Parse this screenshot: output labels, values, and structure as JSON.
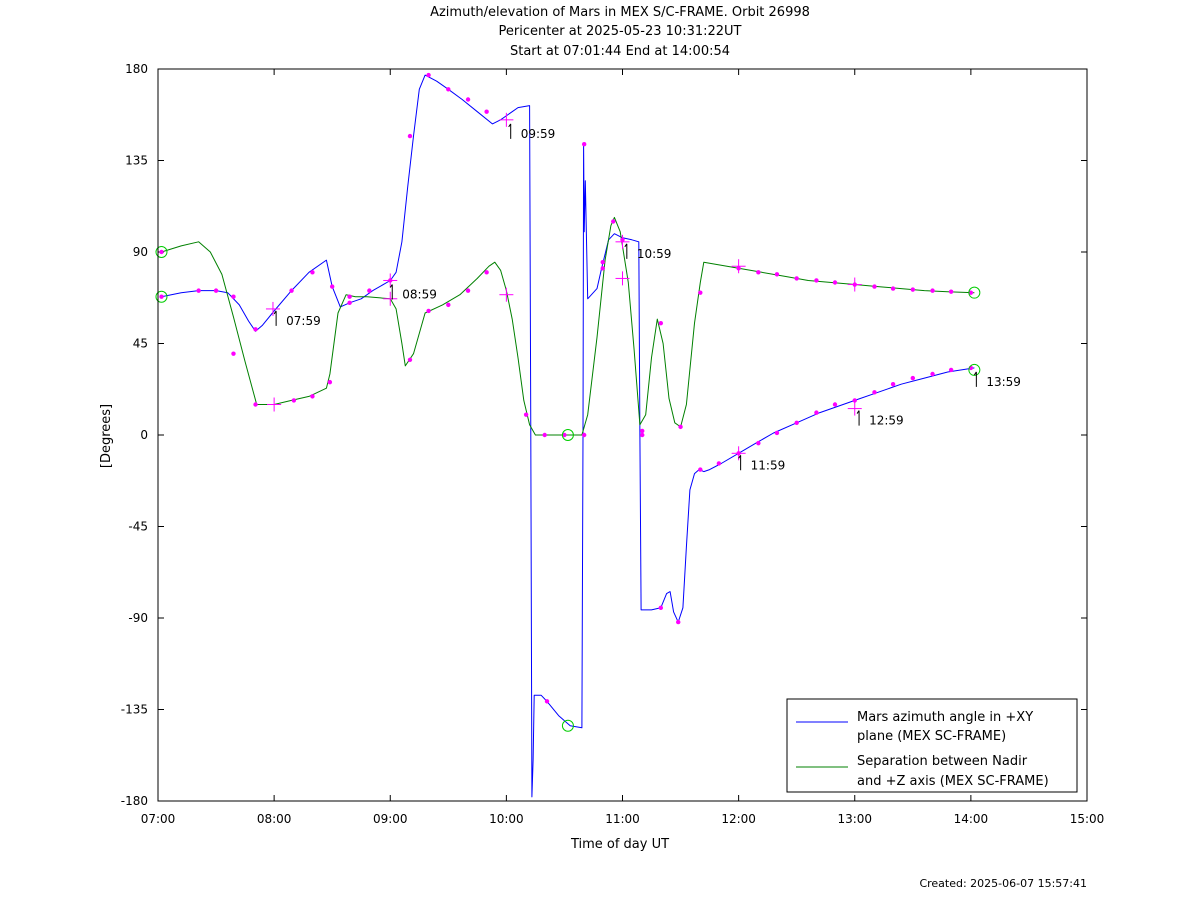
{
  "header": {
    "line1": "Azimuth/elevation of Mars in MEX S/C-FRAME.  Orbit 26998",
    "line2": "Pericenter at 2025-05-23 10:31:22UT",
    "line3": "Start at 07:01:44 End at 14:00:54"
  },
  "footer": {
    "created": "Created: 2025-06-07 15:57:41"
  },
  "colors": {
    "azimuth": "#0000ff",
    "separation": "#008000",
    "markers": "#ff00ff",
    "circles": "#00cc00"
  },
  "chart_data": {
    "type": "line",
    "xlabel": "Time of day UT",
    "ylabel": "[Degrees]",
    "xlim": [
      7.0,
      15.0
    ],
    "ylim": [
      -180,
      180
    ],
    "xticks": [
      {
        "v": 7,
        "label": "07:00"
      },
      {
        "v": 8,
        "label": "08:00"
      },
      {
        "v": 9,
        "label": "09:00"
      },
      {
        "v": 10,
        "label": "10:00"
      },
      {
        "v": 11,
        "label": "11:00"
      },
      {
        "v": 12,
        "label": "12:00"
      },
      {
        "v": 13,
        "label": "13:00"
      },
      {
        "v": 14,
        "label": "14:00"
      },
      {
        "v": 15,
        "label": "15:00"
      }
    ],
    "yticks": [
      {
        "v": 180,
        "label": "180"
      },
      {
        "v": 135,
        "label": "135"
      },
      {
        "v": 90,
        "label": "90"
      },
      {
        "v": 45,
        "label": "45"
      },
      {
        "v": 0,
        "label": "0"
      },
      {
        "v": -45,
        "label": "-45"
      },
      {
        "v": -90,
        "label": "-90"
      },
      {
        "v": -135,
        "label": "-135"
      },
      {
        "v": -180,
        "label": "-180"
      }
    ],
    "legend_position": "bottom-right",
    "series": [
      {
        "name": "Mars azimuth angle in +XY plane (MEX SC-FRAME)",
        "legend_lines": [
          "Mars azimuth angle in +XY",
          "plane (MEX SC-FRAME)"
        ],
        "points": [
          [
            7.03,
            68
          ],
          [
            7.2,
            70
          ],
          [
            7.35,
            71
          ],
          [
            7.5,
            71
          ],
          [
            7.6,
            70
          ],
          [
            7.7,
            64
          ],
          [
            7.78,
            56
          ],
          [
            7.84,
            51
          ],
          [
            7.9,
            54
          ],
          [
            8.0,
            61
          ],
          [
            8.15,
            71
          ],
          [
            8.3,
            80
          ],
          [
            8.45,
            86
          ],
          [
            8.5,
            73
          ],
          [
            8.57,
            63
          ],
          [
            8.65,
            65
          ],
          [
            8.75,
            67
          ],
          [
            8.85,
            71
          ],
          [
            9.0,
            76
          ],
          [
            9.05,
            80
          ],
          [
            9.1,
            95
          ],
          [
            9.15,
            122
          ],
          [
            9.2,
            147
          ],
          [
            9.25,
            170
          ],
          [
            9.3,
            177
          ],
          [
            9.4,
            174
          ],
          [
            9.5,
            170
          ],
          [
            9.62,
            165
          ],
          [
            9.75,
            159
          ],
          [
            9.88,
            153
          ],
          [
            9.95,
            155
          ],
          [
            10.05,
            159
          ],
          [
            10.1,
            161
          ],
          [
            10.2,
            162
          ],
          [
            10.21,
            0
          ],
          [
            10.22,
            -178
          ],
          [
            10.23,
            -160
          ],
          [
            10.24,
            -128
          ],
          [
            10.3,
            -128
          ],
          [
            10.35,
            -131
          ],
          [
            10.45,
            -138
          ],
          [
            10.55,
            -143
          ],
          [
            10.65,
            -144
          ],
          [
            10.66,
            0
          ],
          [
            10.665,
            143
          ],
          [
            10.67,
            100
          ],
          [
            10.68,
            125
          ],
          [
            10.7,
            67
          ],
          [
            10.78,
            72
          ],
          [
            10.82,
            82
          ],
          [
            10.88,
            96
          ],
          [
            10.93,
            99
          ],
          [
            11.0,
            97
          ],
          [
            11.08,
            96
          ],
          [
            11.14,
            95
          ],
          [
            11.15,
            0
          ],
          [
            11.16,
            -86
          ],
          [
            11.25,
            -86
          ],
          [
            11.33,
            -85
          ],
          [
            11.38,
            -78
          ],
          [
            11.41,
            -77
          ],
          [
            11.44,
            -87
          ],
          [
            11.48,
            -92
          ],
          [
            11.52,
            -85
          ],
          [
            11.55,
            -55
          ],
          [
            11.58,
            -27
          ],
          [
            11.62,
            -19
          ],
          [
            11.66,
            -17
          ],
          [
            11.7,
            -18
          ],
          [
            11.75,
            -17
          ],
          [
            11.85,
            -14
          ],
          [
            12.0,
            -9
          ],
          [
            12.15,
            -4
          ],
          [
            12.3,
            1
          ],
          [
            12.5,
            6
          ],
          [
            12.7,
            11
          ],
          [
            12.9,
            15
          ],
          [
            13.0,
            17
          ],
          [
            13.2,
            21
          ],
          [
            13.4,
            25
          ],
          [
            13.6,
            28
          ],
          [
            13.8,
            31
          ],
          [
            14.03,
            33
          ]
        ]
      },
      {
        "name": "Separation between Nadir and +Z axis (MEX SC-FRAME)",
        "legend_lines": [
          "Separation between Nadir",
          "and +Z axis (MEX SC-FRAME)"
        ],
        "points": [
          [
            7.03,
            90
          ],
          [
            7.2,
            93
          ],
          [
            7.35,
            95
          ],
          [
            7.45,
            90
          ],
          [
            7.55,
            79
          ],
          [
            7.65,
            58
          ],
          [
            7.75,
            36
          ],
          [
            7.85,
            15
          ],
          [
            8.0,
            15
          ],
          [
            8.15,
            17
          ],
          [
            8.3,
            19
          ],
          [
            8.45,
            23
          ],
          [
            8.48,
            30
          ],
          [
            8.55,
            60
          ],
          [
            8.62,
            69
          ],
          [
            8.7,
            68
          ],
          [
            8.8,
            68
          ],
          [
            9.0,
            67
          ],
          [
            9.05,
            62
          ],
          [
            9.1,
            45
          ],
          [
            9.13,
            34
          ],
          [
            9.2,
            40
          ],
          [
            9.3,
            60
          ],
          [
            9.45,
            64
          ],
          [
            9.6,
            69
          ],
          [
            9.75,
            77
          ],
          [
            9.85,
            83
          ],
          [
            9.9,
            85
          ],
          [
            9.95,
            81
          ],
          [
            10.0,
            71
          ],
          [
            10.05,
            57
          ],
          [
            10.1,
            38
          ],
          [
            10.15,
            17
          ],
          [
            10.2,
            5
          ],
          [
            10.25,
            0
          ],
          [
            10.4,
            0
          ],
          [
            10.55,
            0
          ],
          [
            10.65,
            0
          ],
          [
            10.7,
            10
          ],
          [
            10.78,
            48
          ],
          [
            10.85,
            86
          ],
          [
            10.9,
            103
          ],
          [
            10.93,
            107
          ],
          [
            10.98,
            100
          ],
          [
            11.05,
            75
          ],
          [
            11.1,
            42
          ],
          [
            11.15,
            5
          ],
          [
            11.2,
            10
          ],
          [
            11.25,
            38
          ],
          [
            11.3,
            57
          ],
          [
            11.35,
            45
          ],
          [
            11.4,
            18
          ],
          [
            11.45,
            6
          ],
          [
            11.5,
            4
          ],
          [
            11.55,
            15
          ],
          [
            11.62,
            55
          ],
          [
            11.67,
            75
          ],
          [
            11.7,
            85
          ],
          [
            11.8,
            84
          ],
          [
            12.0,
            82
          ],
          [
            12.2,
            80
          ],
          [
            12.4,
            78
          ],
          [
            12.6,
            76
          ],
          [
            12.8,
            75
          ],
          [
            13.0,
            74
          ],
          [
            13.2,
            73
          ],
          [
            13.4,
            72
          ],
          [
            13.6,
            71
          ],
          [
            13.8,
            70.5
          ],
          [
            14.03,
            70
          ]
        ]
      }
    ],
    "azimuth_markers": [
      [
        7.03,
        68
      ],
      [
        7.35,
        71
      ],
      [
        7.5,
        71
      ],
      [
        7.65,
        68
      ],
      [
        7.84,
        52
      ],
      [
        8.15,
        71
      ],
      [
        8.33,
        80
      ],
      [
        8.5,
        73
      ],
      [
        8.65,
        65
      ],
      [
        8.82,
        71
      ],
      [
        9.0,
        76
      ],
      [
        9.17,
        147
      ],
      [
        9.33,
        177
      ],
      [
        9.5,
        170
      ],
      [
        9.67,
        165
      ],
      [
        9.83,
        159
      ],
      [
        10.35,
        -131
      ],
      [
        10.67,
        143
      ],
      [
        10.83,
        82
      ],
      [
        11.0,
        96
      ],
      [
        11.17,
        0
      ],
      [
        11.33,
        -85
      ],
      [
        11.48,
        -92
      ],
      [
        11.67,
        -17
      ],
      [
        11.83,
        -14
      ],
      [
        12.0,
        -9
      ],
      [
        12.17,
        -4
      ],
      [
        12.33,
        1
      ],
      [
        12.5,
        6
      ],
      [
        12.67,
        11
      ],
      [
        12.83,
        15
      ],
      [
        13.0,
        17
      ],
      [
        13.17,
        21
      ],
      [
        13.33,
        25
      ],
      [
        13.5,
        28
      ],
      [
        13.67,
        30
      ],
      [
        13.83,
        32
      ],
      [
        14.0,
        33
      ]
    ],
    "separation_markers": [
      [
        7.03,
        90
      ],
      [
        7.65,
        40
      ],
      [
        7.84,
        15
      ],
      [
        8.17,
        17
      ],
      [
        8.33,
        19
      ],
      [
        8.48,
        26
      ],
      [
        8.65,
        68
      ],
      [
        9.17,
        37
      ],
      [
        9.33,
        61
      ],
      [
        9.5,
        64
      ],
      [
        9.67,
        71
      ],
      [
        9.83,
        80
      ],
      [
        10.17,
        10
      ],
      [
        10.33,
        0
      ],
      [
        10.5,
        0
      ],
      [
        10.67,
        0
      ],
      [
        10.83,
        85
      ],
      [
        10.92,
        105
      ],
      [
        11.17,
        2
      ],
      [
        11.33,
        55
      ],
      [
        11.5,
        4
      ],
      [
        11.67,
        70
      ],
      [
        12.0,
        82
      ],
      [
        12.17,
        80
      ],
      [
        12.33,
        79
      ],
      [
        12.5,
        77
      ],
      [
        12.67,
        76
      ],
      [
        12.83,
        75
      ],
      [
        13.0,
        74
      ],
      [
        13.17,
        73
      ],
      [
        13.33,
        72
      ],
      [
        13.5,
        71.5
      ],
      [
        13.67,
        71
      ],
      [
        13.83,
        70.5
      ],
      [
        14.0,
        70
      ]
    ],
    "hour_crosses": [
      [
        7.99,
        62
      ],
      [
        8.0,
        15
      ],
      [
        9.0,
        76
      ],
      [
        9.0,
        67
      ],
      [
        10.0,
        155
      ],
      [
        10.0,
        69
      ],
      [
        11.0,
        95
      ],
      [
        11.0,
        77
      ],
      [
        12.0,
        83
      ],
      [
        12.0,
        -9
      ],
      [
        13.0,
        74
      ],
      [
        13.0,
        13
      ]
    ],
    "circles": [
      [
        7.03,
        90
      ],
      [
        7.03,
        68
      ],
      [
        10.53,
        0
      ],
      [
        10.53,
        -143
      ],
      [
        14.03,
        70
      ],
      [
        14.03,
        32
      ]
    ],
    "annotations": [
      {
        "x": 8.0,
        "y": 62,
        "label": "07:59"
      },
      {
        "x": 9.0,
        "y": 75,
        "label": "08:59"
      },
      {
        "x": 10.02,
        "y": 154,
        "label": "09:59"
      },
      {
        "x": 11.02,
        "y": 95,
        "label": "10:59"
      },
      {
        "x": 12.0,
        "y": -9,
        "label": "11:59"
      },
      {
        "x": 13.02,
        "y": 13,
        "label": "12:59"
      },
      {
        "x": 14.03,
        "y": 32,
        "label": "13:59"
      }
    ]
  }
}
